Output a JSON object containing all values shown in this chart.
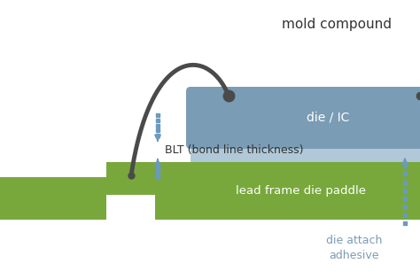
{
  "bg_color": "#ffffff",
  "mold_compound_label": "mold compound",
  "die_ic_label": "die / IC",
  "blt_label": "BLT (bond line thickness)",
  "lead_frame_label": "lead frame die paddle",
  "die_attach_label": "die attach\nadhesive",
  "die_color": "#7a9cb5",
  "die_attach_color": "#b0c8d8",
  "lead_frame_color": "#78a83c",
  "wire_color": "#4a4a4a",
  "arrow_color": "#6b9abf",
  "text_color_dark": "#333333",
  "text_color_blue": "#7a9cb5",
  "text_color_green": "#aaccaa",
  "fig_width": 4.74,
  "fig_height": 3.15,
  "dpi": 100
}
